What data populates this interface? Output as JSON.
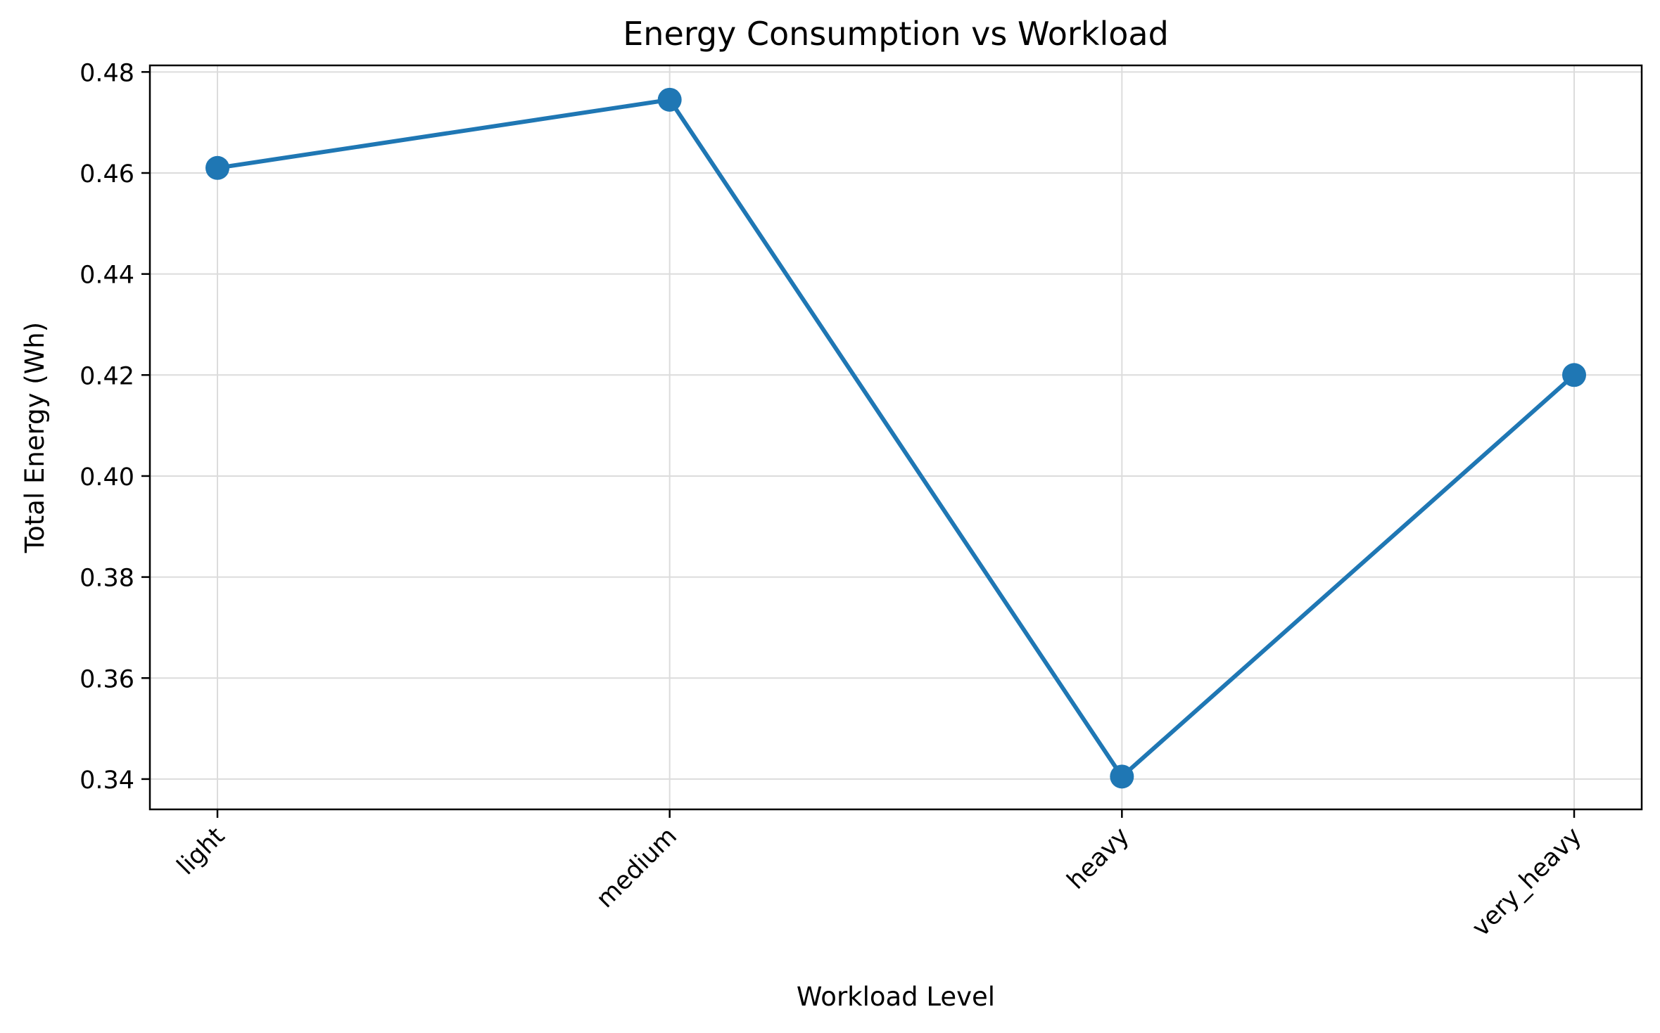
{
  "chart_data": {
    "type": "line",
    "title": "Energy Consumption vs Workload",
    "xlabel": "Workload Level",
    "ylabel": "Total Energy (Wh)",
    "categories": [
      "light",
      "medium",
      "heavy",
      "very_heavy"
    ],
    "series": [
      {
        "values": [
          0.461,
          0.4745,
          0.3405,
          0.42
        ],
        "color": "#1f77b4"
      }
    ],
    "ylim": [
      0.334,
      0.4813
    ],
    "yticks": [
      0.34,
      0.36,
      0.38,
      0.4,
      0.42,
      0.44,
      0.46,
      0.48
    ],
    "ytick_labels": [
      "0.34",
      "0.36",
      "0.38",
      "0.40",
      "0.42",
      "0.44",
      "0.46",
      "0.48"
    ],
    "grid": true,
    "legend": "none"
  }
}
